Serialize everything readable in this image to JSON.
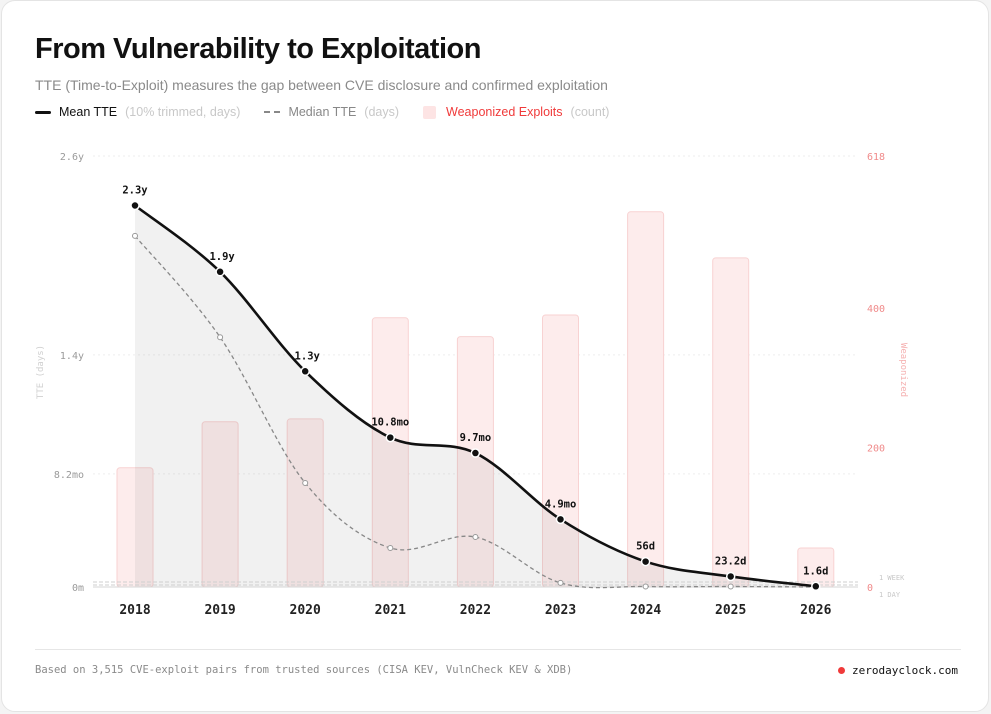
{
  "header": {
    "title": "From Vulnerability to Exploitation",
    "subtitle": "TTE (Time-to-Exploit) measures the gap between CVE disclosure and confirmed exploitation"
  },
  "legend": [
    {
      "label": "Mean TTE",
      "note": "(10% trimmed, days)"
    },
    {
      "label": "Median TTE",
      "note": "(days)"
    },
    {
      "label": "Weaponized Exploits",
      "note": "(count)"
    }
  ],
  "chart_data": {
    "type": "bar+line",
    "categories": [
      "2018",
      "2019",
      "2020",
      "2021",
      "2022",
      "2023",
      "2024",
      "2025",
      "2026"
    ],
    "left_axis": {
      "label": "TTE (days)",
      "range_days": [
        0,
        949
      ],
      "ticks": [
        {
          "label": "2.6y",
          "days": 949
        },
        {
          "label": "1.4y",
          "days": 511
        },
        {
          "label": "8.2mo",
          "days": 249
        },
        {
          "label": "0m",
          "days": 0
        }
      ]
    },
    "right_axis": {
      "label": "Weaponized",
      "range": [
        0,
        618
      ],
      "ticks": [
        618,
        400,
        200,
        0
      ]
    },
    "reference_lines": [
      {
        "label": "1 WEEK",
        "days": 7
      },
      {
        "label": "1 DAY",
        "days": 1
      }
    ],
    "series": [
      {
        "name": "Mean TTE",
        "style": "solid",
        "values_days": [
          840,
          694,
          475,
          329,
          295,
          149,
          56,
          23.2,
          1.6
        ],
        "labels": [
          "2.3y",
          "1.9y",
          "1.3y",
          "10.8mo",
          "9.7mo",
          "4.9mo",
          "56d",
          "23.2d",
          "1.6d"
        ]
      },
      {
        "name": "Median TTE",
        "style": "dashed",
        "values_days": [
          773,
          550,
          229,
          86,
          110,
          9,
          1,
          1,
          0
        ]
      },
      {
        "name": "Weaponized Exploits",
        "style": "bar",
        "values": [
          171,
          237,
          241,
          386,
          359,
          390,
          538,
          472,
          56
        ]
      }
    ],
    "colors": {
      "mean": "#111111",
      "median": "#888888",
      "bar": "#fdecec",
      "bar_border": "#f8d2d2",
      "right_axis": "#f08a8a"
    }
  },
  "footer": {
    "source": "Based on 3,515 CVE-exploit pairs from trusted sources (CISA KEV, VulnCheck KEV & XDB)",
    "brand": "zerodayclock.com"
  }
}
